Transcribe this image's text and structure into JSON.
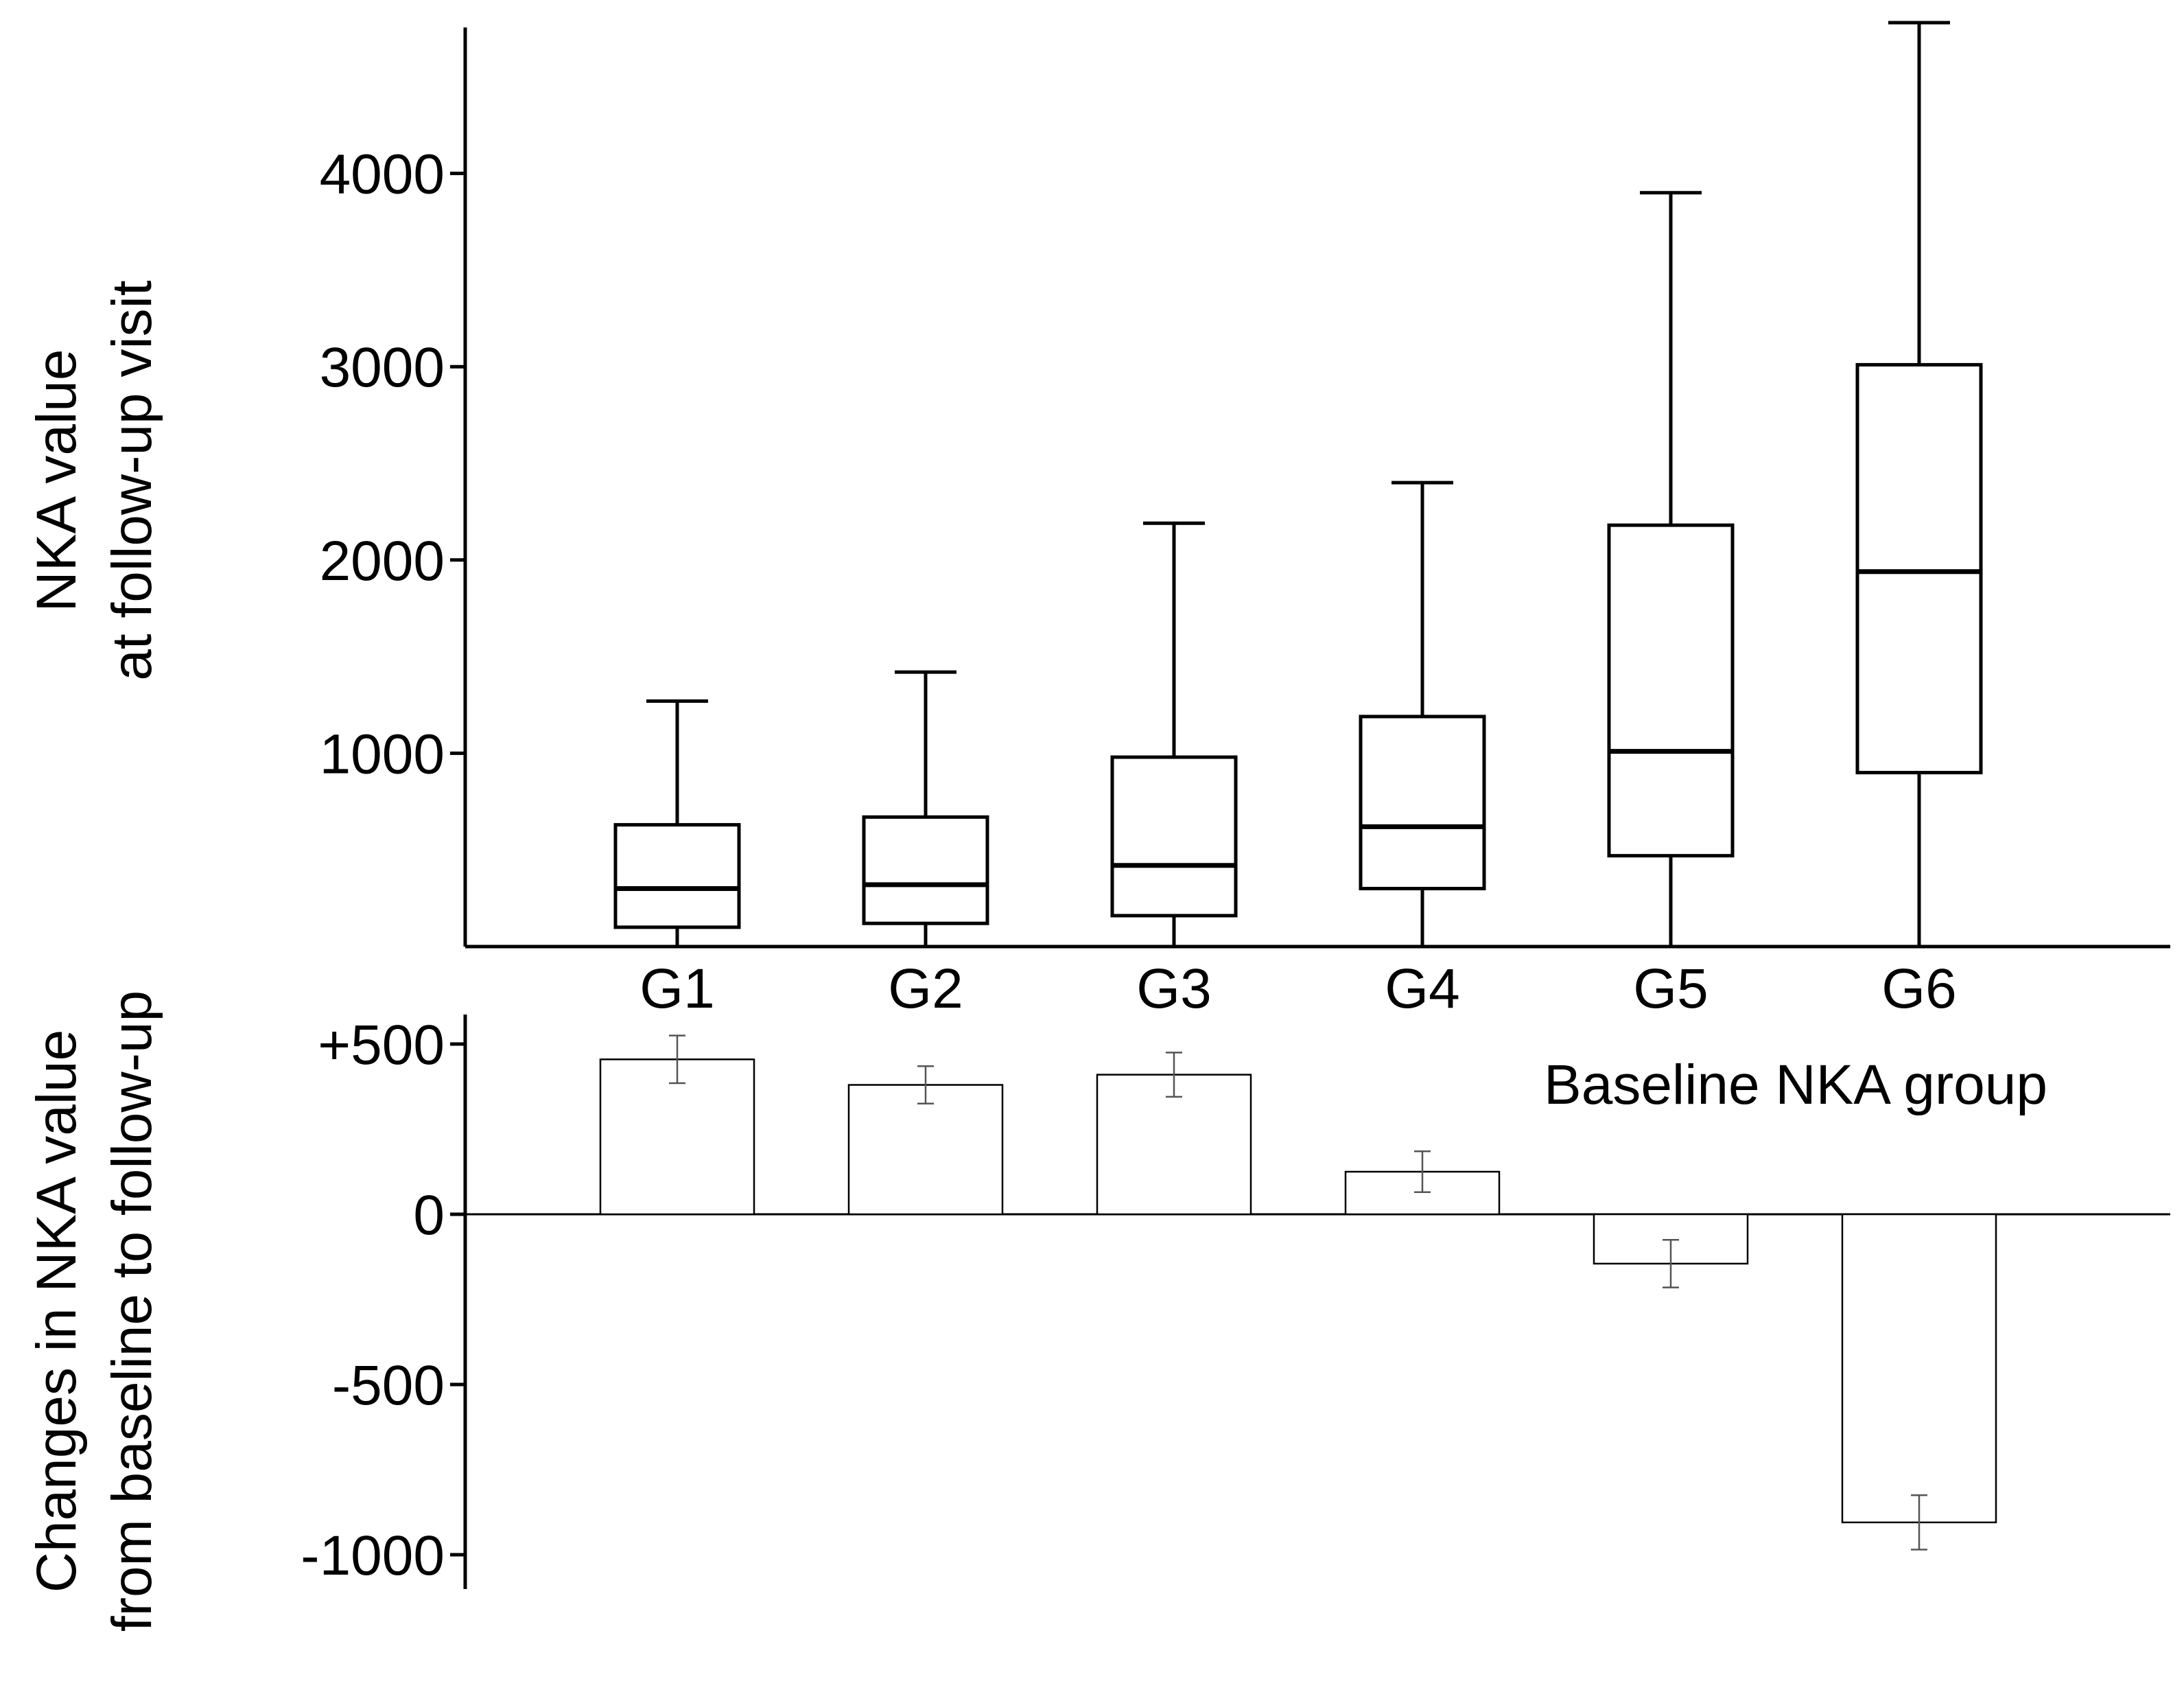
{
  "chart_data": [
    {
      "type": "box",
      "ylabel_lines": [
        "NKA value",
        "at follow-up visit"
      ],
      "ylim": [
        0,
        4850
      ],
      "yticks": [
        1000,
        2000,
        3000,
        4000
      ],
      "ytick_labels": [
        "1000",
        "2000",
        "3000",
        "4000"
      ],
      "categories": [
        "G1",
        "G2",
        "G3",
        "G4",
        "G5",
        "G6"
      ],
      "boxes": [
        {
          "min": 0,
          "q1": 100,
          "median": 300,
          "q3": 630,
          "max": 1270
        },
        {
          "min": 0,
          "q1": 120,
          "median": 320,
          "q3": 670,
          "max": 1420
        },
        {
          "min": 0,
          "q1": 160,
          "median": 420,
          "q3": 980,
          "max": 2190
        },
        {
          "min": 0,
          "q1": 300,
          "median": 620,
          "q3": 1190,
          "max": 2400
        },
        {
          "min": 0,
          "q1": 470,
          "median": 1010,
          "q3": 2180,
          "max": 3900
        },
        {
          "min": 0,
          "q1": 900,
          "median": 1940,
          "q3": 3010,
          "max": 4780
        }
      ]
    },
    {
      "type": "bar",
      "xlabel": "Baseline NKA group",
      "ylabel_lines": [
        "Changes in NKA value",
        "from baseline to follow-up"
      ],
      "ylim": [
        -1100,
        600
      ],
      "yticks": [
        500,
        0,
        -500,
        -1000
      ],
      "ytick_labels": [
        "+500",
        "0",
        "-500",
        "-1000"
      ],
      "categories": [
        "G1",
        "G2",
        "G3",
        "G4",
        "G5",
        "G6"
      ],
      "values": [
        455,
        380,
        410,
        125,
        -145,
        -905
      ],
      "errors": [
        70,
        55,
        65,
        60,
        70,
        80
      ]
    }
  ]
}
